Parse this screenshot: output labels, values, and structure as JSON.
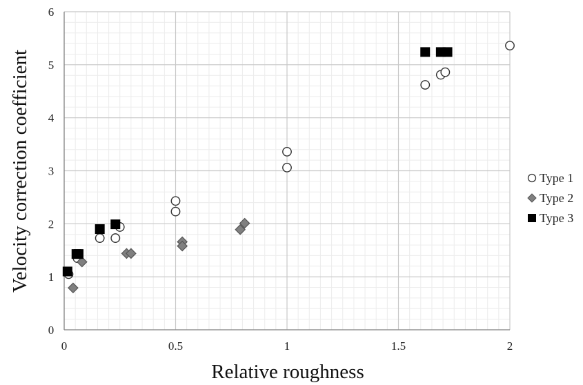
{
  "chart_data": {
    "type": "scatter",
    "title": "",
    "xlabel": "Relative roughness",
    "ylabel": "Velocity correction coefficient",
    "xlim": [
      0,
      2
    ],
    "ylim": [
      0,
      6
    ],
    "x_major_ticks": [
      "0",
      "0.5",
      "1",
      "1.5",
      "2"
    ],
    "y_major_ticks": [
      "0",
      "1",
      "2",
      "3",
      "4",
      "5",
      "6"
    ],
    "grid": "major and minor",
    "legend_position": "right",
    "series": [
      {
        "name": "Type 1",
        "marker": "circle-open",
        "color": "#ffffff",
        "stroke": "#333333",
        "points": [
          {
            "x": 0.02,
            "y": 1.05
          },
          {
            "x": 0.06,
            "y": 1.35
          },
          {
            "x": 0.16,
            "y": 1.73
          },
          {
            "x": 0.23,
            "y": 1.73
          },
          {
            "x": 0.25,
            "y": 1.94
          },
          {
            "x": 0.5,
            "y": 2.23
          },
          {
            "x": 0.5,
            "y": 2.43
          },
          {
            "x": 1.0,
            "y": 3.06
          },
          {
            "x": 1.0,
            "y": 3.36
          },
          {
            "x": 1.62,
            "y": 4.62
          },
          {
            "x": 1.69,
            "y": 4.81
          },
          {
            "x": 1.71,
            "y": 4.86
          },
          {
            "x": 2.0,
            "y": 5.36
          }
        ]
      },
      {
        "name": "Type 2",
        "marker": "diamond",
        "color": "#808080",
        "stroke": "#555555",
        "points": [
          {
            "x": 0.04,
            "y": 0.79
          },
          {
            "x": 0.08,
            "y": 1.28
          },
          {
            "x": 0.28,
            "y": 1.44
          },
          {
            "x": 0.3,
            "y": 1.44
          },
          {
            "x": 0.53,
            "y": 1.66
          },
          {
            "x": 0.53,
            "y": 1.58
          },
          {
            "x": 0.79,
            "y": 1.89
          },
          {
            "x": 0.81,
            "y": 2.01
          }
        ]
      },
      {
        "name": "Type 3",
        "marker": "square",
        "color": "#000000",
        "stroke": "#000000",
        "points": [
          {
            "x": 0.015,
            "y": 1.1
          },
          {
            "x": 0.055,
            "y": 1.43
          },
          {
            "x": 0.065,
            "y": 1.43
          },
          {
            "x": 0.16,
            "y": 1.9
          },
          {
            "x": 0.23,
            "y": 1.99
          },
          {
            "x": 1.62,
            "y": 5.24
          },
          {
            "x": 1.69,
            "y": 5.24
          },
          {
            "x": 1.72,
            "y": 5.24
          }
        ]
      }
    ]
  }
}
